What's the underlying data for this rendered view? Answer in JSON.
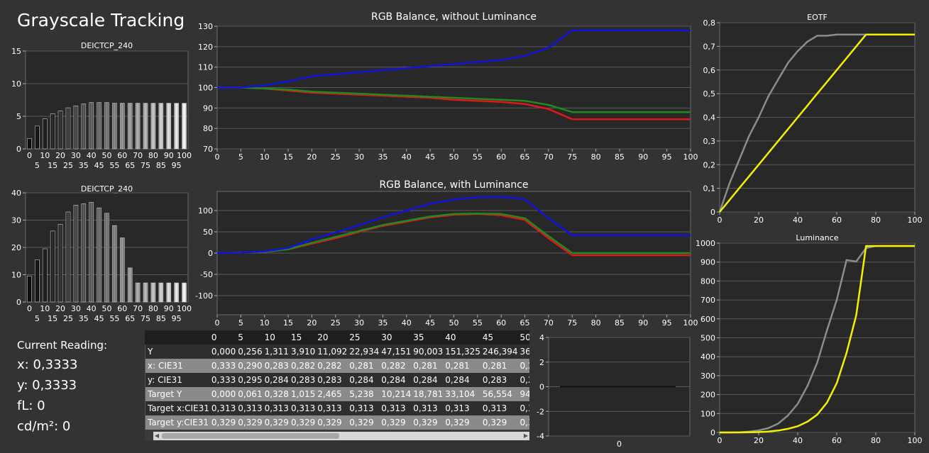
{
  "page": {
    "title": "Grayscale Tracking"
  },
  "current_reading": {
    "title": "Current Reading:",
    "x": "x: 0,3333",
    "y": "y: 0,3333",
    "fl": "fL: 0",
    "cdm2": "cd/m²: 0"
  },
  "table": {
    "headers": [
      "0",
      "5",
      "10",
      "15",
      "20",
      "25",
      "30",
      "35",
      "40",
      "45",
      "50"
    ],
    "rows": [
      {
        "label": "Y",
        "values": [
          "0,000",
          "0,256",
          "1,311",
          "3,910",
          "11,092",
          "22,934",
          "47,151",
          "90,003",
          "151,325",
          "246,394",
          "36"
        ]
      },
      {
        "label": "x: CIE31",
        "values": [
          "0,333",
          "0,290",
          "0,283",
          "0,282",
          "0,282",
          "0,281",
          "0,282",
          "0,281",
          "0,281",
          "0,281",
          "0,2"
        ]
      },
      {
        "label": "y: CIE31",
        "values": [
          "0,333",
          "0,295",
          "0,284",
          "0,283",
          "0,283",
          "0,284",
          "0,284",
          "0,284",
          "0,284",
          "0,283",
          "0,2"
        ]
      },
      {
        "label": "Target Y",
        "values": [
          "0,000",
          "0,061",
          "0,328",
          "1,015",
          "2,465",
          "5,238",
          "10,214",
          "18,781",
          "33,104",
          "56,554",
          "94"
        ]
      },
      {
        "label": "Target x:CIE31",
        "values": [
          "0,313",
          "0,313",
          "0,313",
          "0,313",
          "0,313",
          "0,313",
          "0,313",
          "0,313",
          "0,313",
          "0,313",
          "0,3"
        ]
      },
      {
        "label": "Target y:CIE31",
        "values": [
          "0,329",
          "0,329",
          "0,329",
          "0,329",
          "0,329",
          "0,329",
          "0,329",
          "0,329",
          "0,329",
          "0,329",
          "0,3"
        ]
      }
    ]
  },
  "colors": {
    "red": "#e01818",
    "green": "#1f8a1f",
    "blue": "#1212dd",
    "yellow": "#f2f200",
    "reference": "#8c8c8c",
    "plot_bg": "#282828",
    "grid": "#5a5a5a",
    "axis_text": "#ffffff"
  },
  "chart_data": [
    {
      "id": "deltae1",
      "type": "bar",
      "title": "DEICTCP_240",
      "categories": [
        "0",
        "5",
        "10",
        "15",
        "20",
        "25",
        "30",
        "35",
        "40",
        "45",
        "50",
        "55",
        "60",
        "65",
        "70",
        "75",
        "80",
        "85",
        "90",
        "95",
        "100"
      ],
      "values": [
        1.6,
        3.5,
        4.6,
        5.4,
        5.8,
        6.3,
        6.6,
        6.9,
        7.1,
        7.1,
        7.1,
        7.0,
        7.0,
        7.0,
        7.0,
        7.0,
        7.0,
        7.0,
        7.0,
        7.0,
        7.0
      ],
      "ylim": [
        0,
        15
      ],
      "yticks": [
        0,
        5,
        10,
        15
      ],
      "xticks_top": [
        "0",
        "10",
        "20",
        "30",
        "40",
        "50",
        "60",
        "70",
        "80",
        "90",
        "100"
      ],
      "xticks_bottom": [
        "5",
        "15",
        "25",
        "35",
        "45",
        "55",
        "65",
        "75",
        "85",
        "95"
      ]
    },
    {
      "id": "deltae2",
      "type": "bar",
      "title": "DEICTCP_240",
      "categories": [
        "0",
        "5",
        "10",
        "15",
        "20",
        "25",
        "30",
        "35",
        "40",
        "45",
        "50",
        "55",
        "60",
        "65",
        "70",
        "75",
        "80",
        "85",
        "90",
        "95",
        "100"
      ],
      "values": [
        9.5,
        15.5,
        19.5,
        26,
        28.5,
        33,
        35.5,
        36,
        36.5,
        34.5,
        32.5,
        28,
        23.5,
        12.5,
        7,
        7,
        7,
        7,
        7,
        7,
        7
      ],
      "ylim": [
        0,
        40
      ],
      "yticks": [
        0,
        10,
        20,
        30,
        40
      ],
      "xticks_top": [
        "0",
        "10",
        "20",
        "30",
        "40",
        "50",
        "60",
        "70",
        "80",
        "90",
        "100"
      ],
      "xticks_bottom": [
        "5",
        "15",
        "25",
        "35",
        "45",
        "55",
        "65",
        "75",
        "85",
        "95"
      ]
    },
    {
      "id": "rgb1",
      "type": "line",
      "title": "RGB Balance, without Luminance",
      "x": [
        0,
        5,
        10,
        15,
        20,
        25,
        30,
        35,
        40,
        45,
        50,
        55,
        60,
        65,
        70,
        75,
        80,
        85,
        90,
        95,
        100
      ],
      "ylim": [
        70,
        130
      ],
      "yticks": [
        70,
        80,
        90,
        100,
        110,
        120,
        130
      ],
      "xticks": [
        0,
        5,
        10,
        15,
        20,
        25,
        30,
        35,
        40,
        45,
        50,
        55,
        60,
        65,
        70,
        75,
        80,
        85,
        90,
        95,
        100
      ],
      "series": [
        {
          "color": "red",
          "values": [
            100,
            100,
            99.5,
            98.5,
            97.5,
            97,
            96.5,
            96,
            95.5,
            95,
            94,
            93.5,
            93,
            92,
            89.5,
            84.5,
            84.5,
            84.5,
            84.5,
            84.5,
            84.5
          ]
        },
        {
          "color": "green",
          "values": [
            100,
            100,
            99.5,
            99,
            98,
            97.5,
            97,
            96.5,
            96,
            95.5,
            95,
            94.5,
            94,
            93.5,
            91.5,
            88,
            88,
            88,
            88,
            88,
            88
          ]
        },
        {
          "color": "blue",
          "values": [
            100,
            100,
            101,
            103,
            105.5,
            106.5,
            107.5,
            108.5,
            109.5,
            110.5,
            111.5,
            112.5,
            113.5,
            115.5,
            119.5,
            128,
            128,
            128,
            128,
            128,
            128
          ]
        }
      ]
    },
    {
      "id": "rgb2",
      "type": "line",
      "title": "RGB Balance, with Luminance",
      "x": [
        0,
        5,
        10,
        15,
        20,
        25,
        30,
        35,
        40,
        45,
        50,
        55,
        60,
        65,
        70,
        75,
        80,
        85,
        90,
        95,
        100
      ],
      "ylim": [
        -145,
        145
      ],
      "yticks": [
        -100,
        -50,
        0,
        50,
        100
      ],
      "xticks": [
        0,
        5,
        10,
        15,
        20,
        25,
        30,
        35,
        40,
        45,
        50,
        55,
        60,
        65,
        70,
        75,
        80,
        85,
        90,
        95,
        100
      ],
      "series": [
        {
          "color": "red",
          "values": [
            0,
            1,
            3,
            9,
            22,
            35,
            50,
            64,
            74,
            84,
            90,
            92,
            89,
            78,
            35,
            -5,
            -5,
            -5,
            -5,
            -5,
            -5
          ]
        },
        {
          "color": "green",
          "values": [
            0,
            1,
            3,
            9,
            24,
            38,
            52,
            66,
            76,
            86,
            92,
            93,
            92,
            82,
            40,
            0,
            0,
            0,
            0,
            0,
            0
          ]
        },
        {
          "color": "blue",
          "values": [
            0,
            1,
            4,
            12,
            32,
            48,
            66,
            84,
            100,
            116,
            126,
            131,
            132,
            127,
            82,
            42,
            42,
            42,
            42,
            42,
            42
          ]
        }
      ]
    },
    {
      "id": "small",
      "type": "line",
      "title": "",
      "ylim": [
        -4,
        4
      ],
      "yticks": [
        -4,
        -2,
        0,
        2,
        4
      ],
      "xticks": [
        "0"
      ],
      "series": [
        {
          "color": "dark",
          "values": [
            0,
            0
          ]
        }
      ]
    },
    {
      "id": "eotf",
      "type": "line",
      "title": "EOTF",
      "x": [
        0,
        5,
        10,
        15,
        20,
        25,
        30,
        35,
        40,
        45,
        50,
        55,
        60,
        65,
        70,
        75,
        80,
        85,
        90,
        95,
        100
      ],
      "xlim": [
        0,
        100
      ],
      "ylim": [
        0,
        0.8
      ],
      "yticks": [
        0,
        0.1,
        0.2,
        0.3,
        0.4,
        0.5,
        0.6,
        0.7,
        0.8
      ],
      "ytick_labels": [
        "0",
        "0,1",
        "0,2",
        "0,3",
        "0,4",
        "0,5",
        "0,6",
        "0,7",
        "0,8"
      ],
      "xticks": [
        0,
        20,
        40,
        60,
        80,
        100
      ],
      "series": [
        {
          "color": "reference",
          "values": [
            0,
            0.12,
            0.22,
            0.32,
            0.4,
            0.49,
            0.56,
            0.63,
            0.68,
            0.72,
            0.745,
            0.745,
            0.75,
            0.75,
            0.75,
            0.75,
            0.75,
            0.75,
            0.75,
            0.75,
            0.75
          ]
        },
        {
          "color": "yellow",
          "values": [
            0,
            0.05,
            0.1,
            0.15,
            0.2,
            0.25,
            0.3,
            0.35,
            0.4,
            0.45,
            0.5,
            0.55,
            0.6,
            0.65,
            0.7,
            0.75,
            0.75,
            0.75,
            0.75,
            0.75,
            0.75
          ]
        }
      ]
    },
    {
      "id": "lum",
      "type": "line",
      "title": "Luminance",
      "x": [
        0,
        5,
        10,
        15,
        20,
        25,
        30,
        35,
        40,
        45,
        50,
        55,
        60,
        65,
        70,
        75,
        80,
        85,
        90,
        95,
        100
      ],
      "xlim": [
        0,
        100
      ],
      "ylim": [
        0,
        1000
      ],
      "yticks": [
        0,
        100,
        200,
        300,
        400,
        500,
        600,
        700,
        800,
        900,
        1000
      ],
      "xticks": [
        0,
        20,
        40,
        60,
        80,
        100
      ],
      "series": [
        {
          "color": "reference",
          "values": [
            0,
            0,
            1,
            4,
            11,
            23,
            47,
            90,
            151,
            246,
            369,
            541,
            700,
            911,
            903,
            974,
            985,
            985,
            985,
            985,
            985
          ]
        },
        {
          "color": "yellow",
          "values": [
            0,
            0,
            0,
            1,
            2,
            5,
            10,
            19,
            33,
            57,
            94,
            158,
            260,
            420,
            620,
            985,
            985,
            985,
            985,
            985,
            985
          ]
        }
      ]
    }
  ]
}
